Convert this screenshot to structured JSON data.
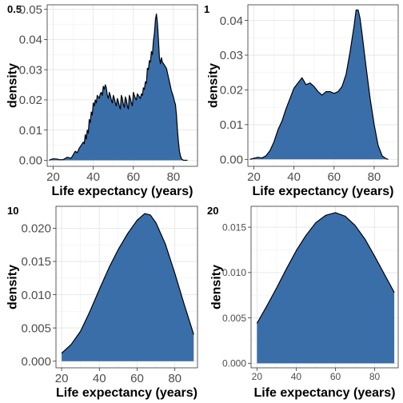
{
  "chart_data": [
    {
      "type": "area",
      "panel_tag": "0.5",
      "xlabel": "Life expectancy (years)",
      "ylabel": "density",
      "xlim": [
        17,
        92
      ],
      "ylim": [
        -0.002,
        0.0515
      ],
      "xticks": [
        20,
        40,
        60,
        80
      ],
      "xtick_labels": [
        "20",
        "40",
        "60",
        "80"
      ],
      "yticks": [
        0,
        0.01,
        0.02,
        0.03,
        0.04,
        0.05
      ],
      "ytick_labels": [
        "0.00",
        "0.01",
        "0.02",
        "0.03",
        "0.04",
        "0.05"
      ],
      "grid": true,
      "fill": "#3a6ea9",
      "x": [
        18,
        19,
        20,
        22,
        23,
        25,
        27,
        29,
        31,
        32,
        33,
        34,
        35,
        35.5,
        36,
        36.5,
        37,
        37.5,
        38,
        38.5,
        39,
        39.5,
        40,
        40.5,
        41,
        41.5,
        42,
        42.5,
        43,
        43.5,
        44,
        44.5,
        45,
        45.5,
        46,
        46.5,
        47,
        47.5,
        48,
        48.5,
        49,
        49.5,
        50,
        50.5,
        51,
        51.5,
        52,
        52.5,
        53,
        53.5,
        54,
        54.5,
        55,
        55.5,
        56,
        56.5,
        57,
        57.5,
        58,
        58.5,
        59,
        59.5,
        60,
        60.5,
        61,
        61.5,
        62,
        62.5,
        63,
        63.5,
        64,
        64.5,
        65,
        65.5,
        66,
        66.5,
        67,
        67.5,
        68,
        68.5,
        69,
        69.5,
        70,
        70.5,
        71,
        71.5,
        72,
        72.5,
        73,
        73.5,
        74,
        74.5,
        75,
        75.5,
        76,
        76.5,
        77,
        77.5,
        78,
        78.5,
        79,
        79.5,
        80,
        80.5,
        81,
        81.5,
        82,
        82.5,
        83,
        83.5,
        84,
        84.5,
        85,
        86,
        87
      ],
      "y": [
        0,
        0.0003,
        0.0005,
        0.0004,
        0.0002,
        0.0002,
        0.001,
        0.0007,
        0.003,
        0.0025,
        0.004,
        0.005,
        0.006,
        0.0055,
        0.0085,
        0.007,
        0.01,
        0.009,
        0.0135,
        0.0125,
        0.016,
        0.015,
        0.019,
        0.018,
        0.02,
        0.019,
        0.0215,
        0.021,
        0.0205,
        0.022,
        0.0225,
        0.0215,
        0.0245,
        0.0235,
        0.025,
        0.024,
        0.0215,
        0.0205,
        0.0225,
        0.0215,
        0.02,
        0.019,
        0.0215,
        0.0205,
        0.019,
        0.018,
        0.0205,
        0.0195,
        0.018,
        0.017,
        0.0215,
        0.0205,
        0.0185,
        0.0175,
        0.021,
        0.02,
        0.018,
        0.017,
        0.0215,
        0.0205,
        0.019,
        0.018,
        0.0225,
        0.0215,
        0.0205,
        0.02,
        0.022,
        0.0215,
        0.021,
        0.0205,
        0.022,
        0.0215,
        0.024,
        0.0235,
        0.026,
        0.0255,
        0.0305,
        0.03,
        0.033,
        0.0325,
        0.036,
        0.035,
        0.0395,
        0.042,
        0.0465,
        0.0485,
        0.0455,
        0.04,
        0.034,
        0.032,
        0.034,
        0.0325,
        0.032,
        0.0315,
        0.031,
        0.0305,
        0.029,
        0.0275,
        0.026,
        0.0245,
        0.023,
        0.022,
        0.021,
        0.0195,
        0.0185,
        0.015,
        0.01,
        0.006,
        0.003,
        0.0015,
        0.0005,
        0.0002,
        0,
        0,
        0
      ]
    },
    {
      "type": "area",
      "panel_tag": "1",
      "xlabel": "Life expectancy (years)",
      "ylabel": "density",
      "xlim": [
        17,
        92
      ],
      "ylim": [
        -0.002,
        0.0445
      ],
      "xticks": [
        20,
        40,
        60,
        80
      ],
      "xtick_labels": [
        "20",
        "40",
        "60",
        "80"
      ],
      "yticks": [
        0,
        0.01,
        0.02,
        0.03,
        0.04
      ],
      "ytick_labels": [
        "0.00",
        "0.01",
        "0.02",
        "0.03",
        "0.04"
      ],
      "grid": true,
      "fill": "#3a6ea9",
      "x": [
        18,
        20,
        22,
        24,
        26,
        28,
        30,
        32,
        34,
        36,
        38,
        40,
        42,
        44,
        46,
        48,
        50,
        52,
        54,
        56,
        58,
        60,
        62,
        64,
        66,
        68,
        70,
        71,
        72,
        73,
        74,
        76,
        78,
        80,
        82,
        84,
        86,
        87
      ],
      "y": [
        0,
        0.0003,
        0.0006,
        0.0004,
        0.001,
        0.0025,
        0.005,
        0.0085,
        0.011,
        0.0145,
        0.0175,
        0.0205,
        0.022,
        0.0235,
        0.0215,
        0.022,
        0.021,
        0.0195,
        0.0185,
        0.0195,
        0.0195,
        0.019,
        0.0195,
        0.021,
        0.0245,
        0.031,
        0.0385,
        0.043,
        0.043,
        0.0405,
        0.036,
        0.0265,
        0.0175,
        0.01,
        0.004,
        0.001,
        0.0002,
        0
      ]
    },
    {
      "type": "area",
      "panel_tag": "10",
      "xlabel": "Life expectancy (years)",
      "ylabel": "density",
      "xlim": [
        17,
        92
      ],
      "ylim": [
        -0.001,
        0.0233
      ],
      "xticks": [
        20,
        40,
        60,
        80
      ],
      "xtick_labels": [
        "20",
        "40",
        "60",
        "80"
      ],
      "yticks": [
        0,
        0.005,
        0.01,
        0.015,
        0.02
      ],
      "ytick_labels": [
        "0.000",
        "0.005",
        "0.010",
        "0.015",
        "0.020"
      ],
      "grid": true,
      "fill": "#3a6ea9",
      "x": [
        20,
        25,
        30,
        35,
        40,
        45,
        50,
        55,
        60,
        64,
        67,
        70,
        75,
        80,
        85,
        90
      ],
      "y": [
        0.0012,
        0.0025,
        0.0045,
        0.0075,
        0.0108,
        0.014,
        0.0168,
        0.0192,
        0.0212,
        0.0222,
        0.022,
        0.0208,
        0.0176,
        0.0132,
        0.0085,
        0.004
      ]
    },
    {
      "type": "area",
      "panel_tag": "20",
      "xlabel": "Life expectancy (years)",
      "ylabel": "density",
      "xlim": [
        17,
        92
      ],
      "ylim": [
        -0.0005,
        0.0173
      ],
      "xticks": [
        20,
        40,
        60,
        80
      ],
      "xtick_labels": [
        "20",
        "40",
        "60",
        "80"
      ],
      "yticks": [
        0,
        0.005,
        0.01,
        0.015
      ],
      "ytick_labels": [
        "0.000",
        "0.005",
        "0.010",
        "0.015"
      ],
      "grid": true,
      "fill": "#3a6ea9",
      "x": [
        20,
        25,
        30,
        35,
        40,
        45,
        50,
        55,
        60,
        65,
        70,
        75,
        80,
        85,
        90
      ],
      "y": [
        0.0044,
        0.0063,
        0.0083,
        0.0104,
        0.0124,
        0.0141,
        0.0155,
        0.0163,
        0.0166,
        0.0162,
        0.0152,
        0.0137,
        0.0118,
        0.0098,
        0.0078
      ]
    }
  ]
}
